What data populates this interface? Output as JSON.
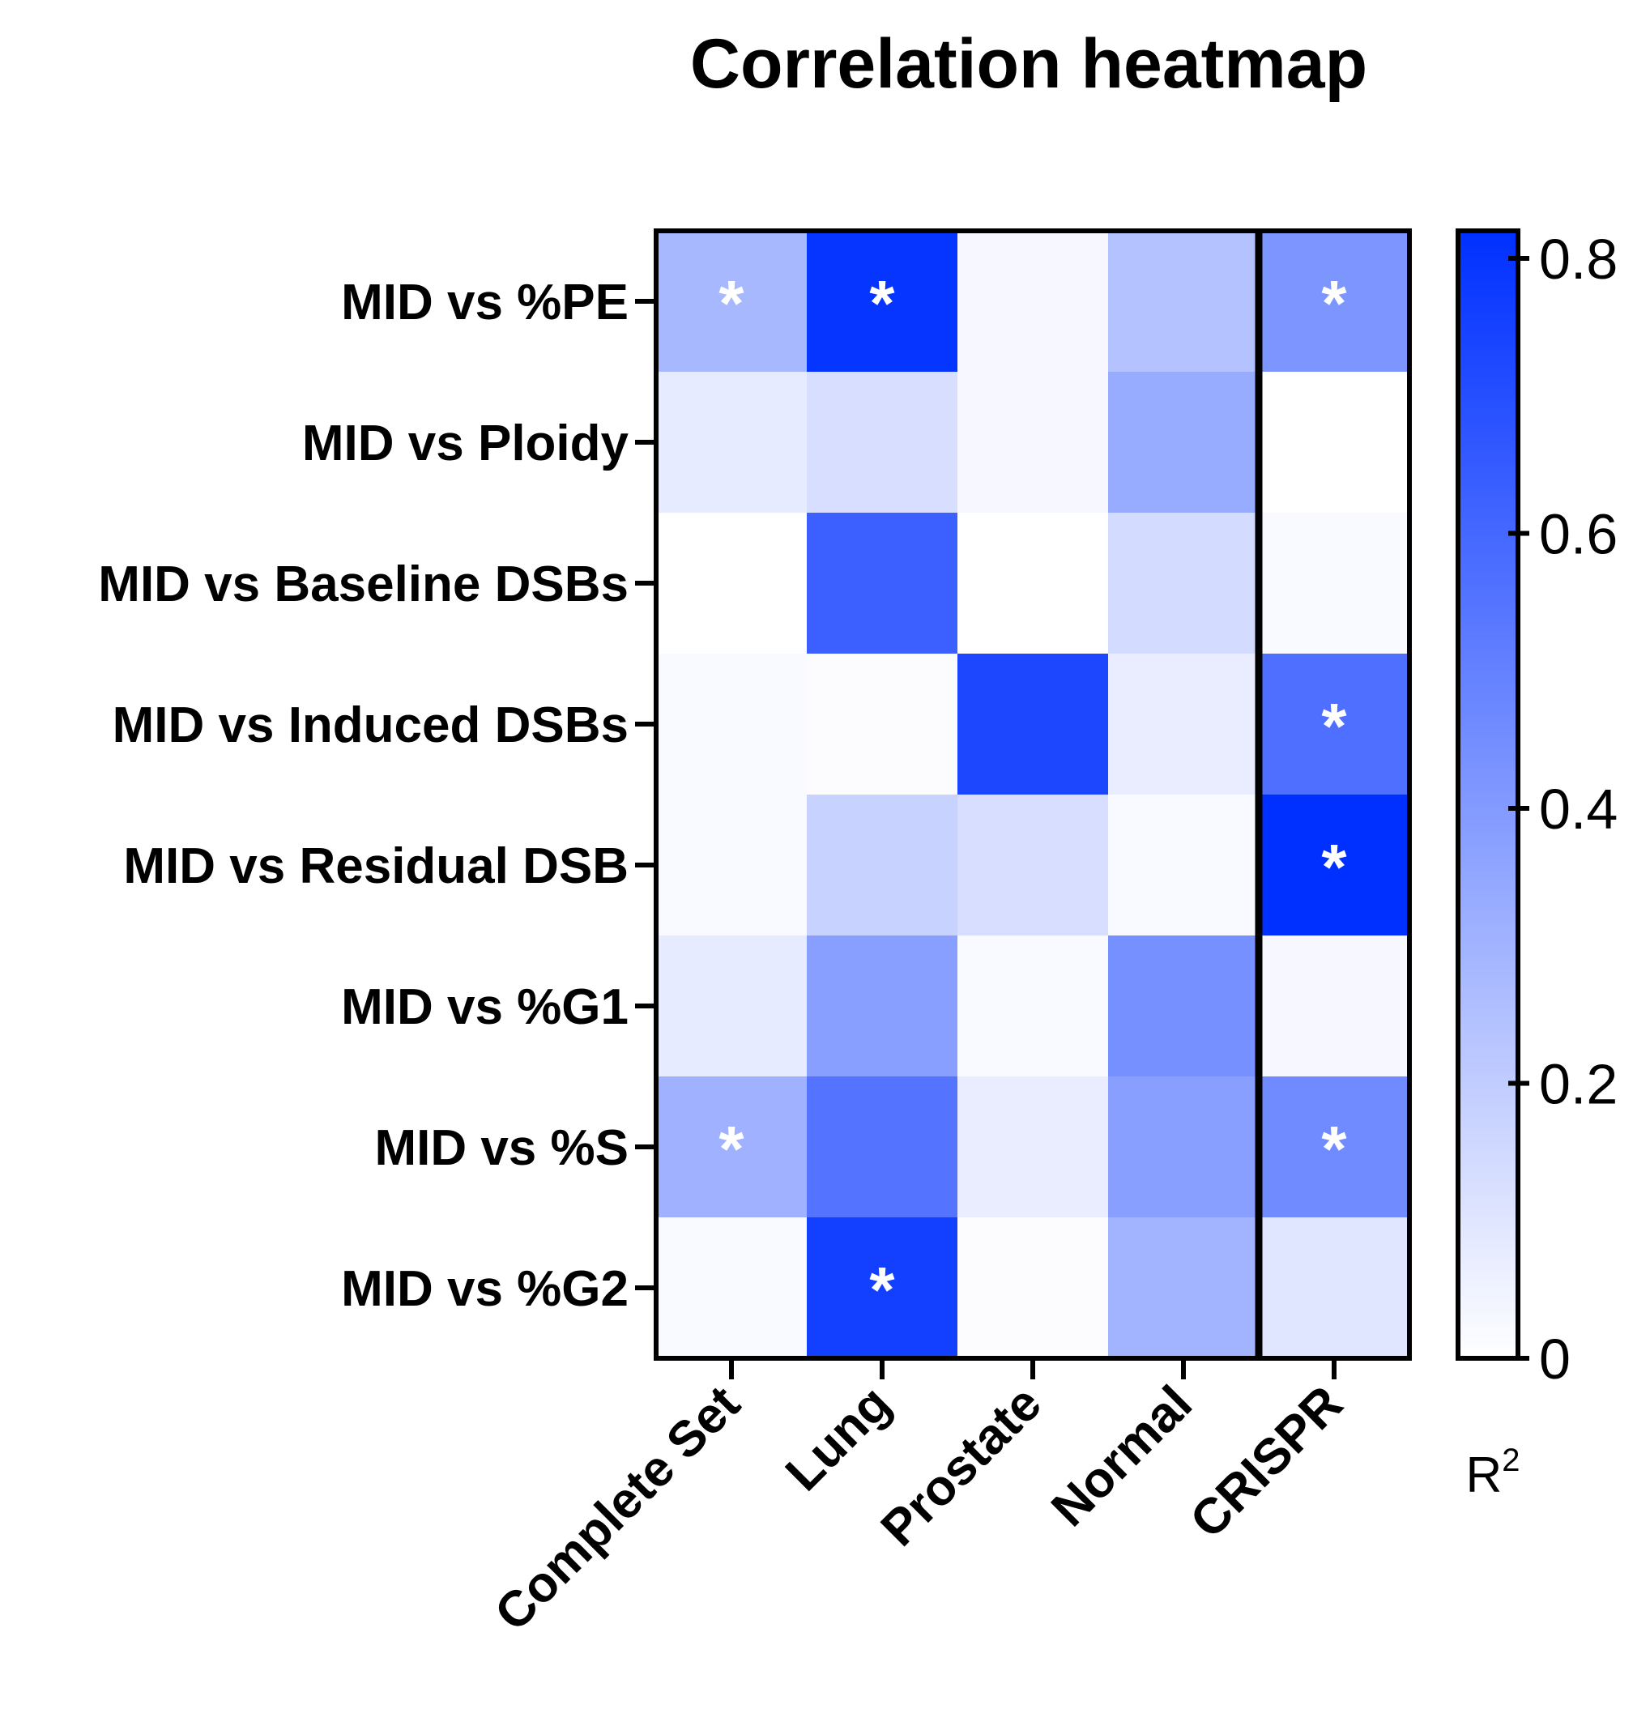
{
  "chart_data": {
    "type": "heatmap",
    "title": "Correlation heatmap",
    "rows": [
      "MID vs %PE",
      "MID vs Ploidy",
      "MID vs Baseline DSBs",
      "MID vs Induced DSBs",
      "MID vs Residual DSB",
      "MID vs %G1",
      "MID vs %S",
      "MID vs %G2"
    ],
    "columns": [
      "Complete Set",
      "Lung",
      "Prostate",
      "Normal",
      "CRISPR"
    ],
    "values": [
      [
        0.28,
        0.8,
        0.03,
        0.24,
        0.42
      ],
      [
        0.08,
        0.13,
        0.03,
        0.33,
        0.0
      ],
      [
        0.0,
        0.63,
        0.0,
        0.14,
        0.02
      ],
      [
        0.02,
        0.01,
        0.73,
        0.07,
        0.57
      ],
      [
        0.02,
        0.18,
        0.13,
        0.02,
        0.82
      ],
      [
        0.08,
        0.38,
        0.02,
        0.44,
        0.03
      ],
      [
        0.31,
        0.55,
        0.07,
        0.38,
        0.46
      ],
      [
        0.02,
        0.76,
        0.01,
        0.3,
        0.1
      ]
    ],
    "significant": [
      [
        true,
        true,
        false,
        false,
        true
      ],
      [
        false,
        false,
        false,
        false,
        false
      ],
      [
        false,
        false,
        false,
        false,
        false
      ],
      [
        false,
        false,
        false,
        false,
        true
      ],
      [
        false,
        false,
        false,
        false,
        true
      ],
      [
        false,
        false,
        false,
        false,
        false
      ],
      [
        true,
        false,
        false,
        false,
        true
      ],
      [
        false,
        true,
        false,
        false,
        false
      ]
    ],
    "significance_marker": "*",
    "colorbar": {
      "label": "R",
      "label_superscript": "2",
      "range": [
        0,
        0.82
      ],
      "ticks": [
        0,
        0.2,
        0.4,
        0.6,
        0.8
      ],
      "tick_labels": [
        "0",
        "0.2",
        "0.4",
        "0.6",
        "0.8"
      ],
      "color_low": "#ffffff",
      "color_high": "#0030ff"
    },
    "separator_after_column": "Normal"
  }
}
